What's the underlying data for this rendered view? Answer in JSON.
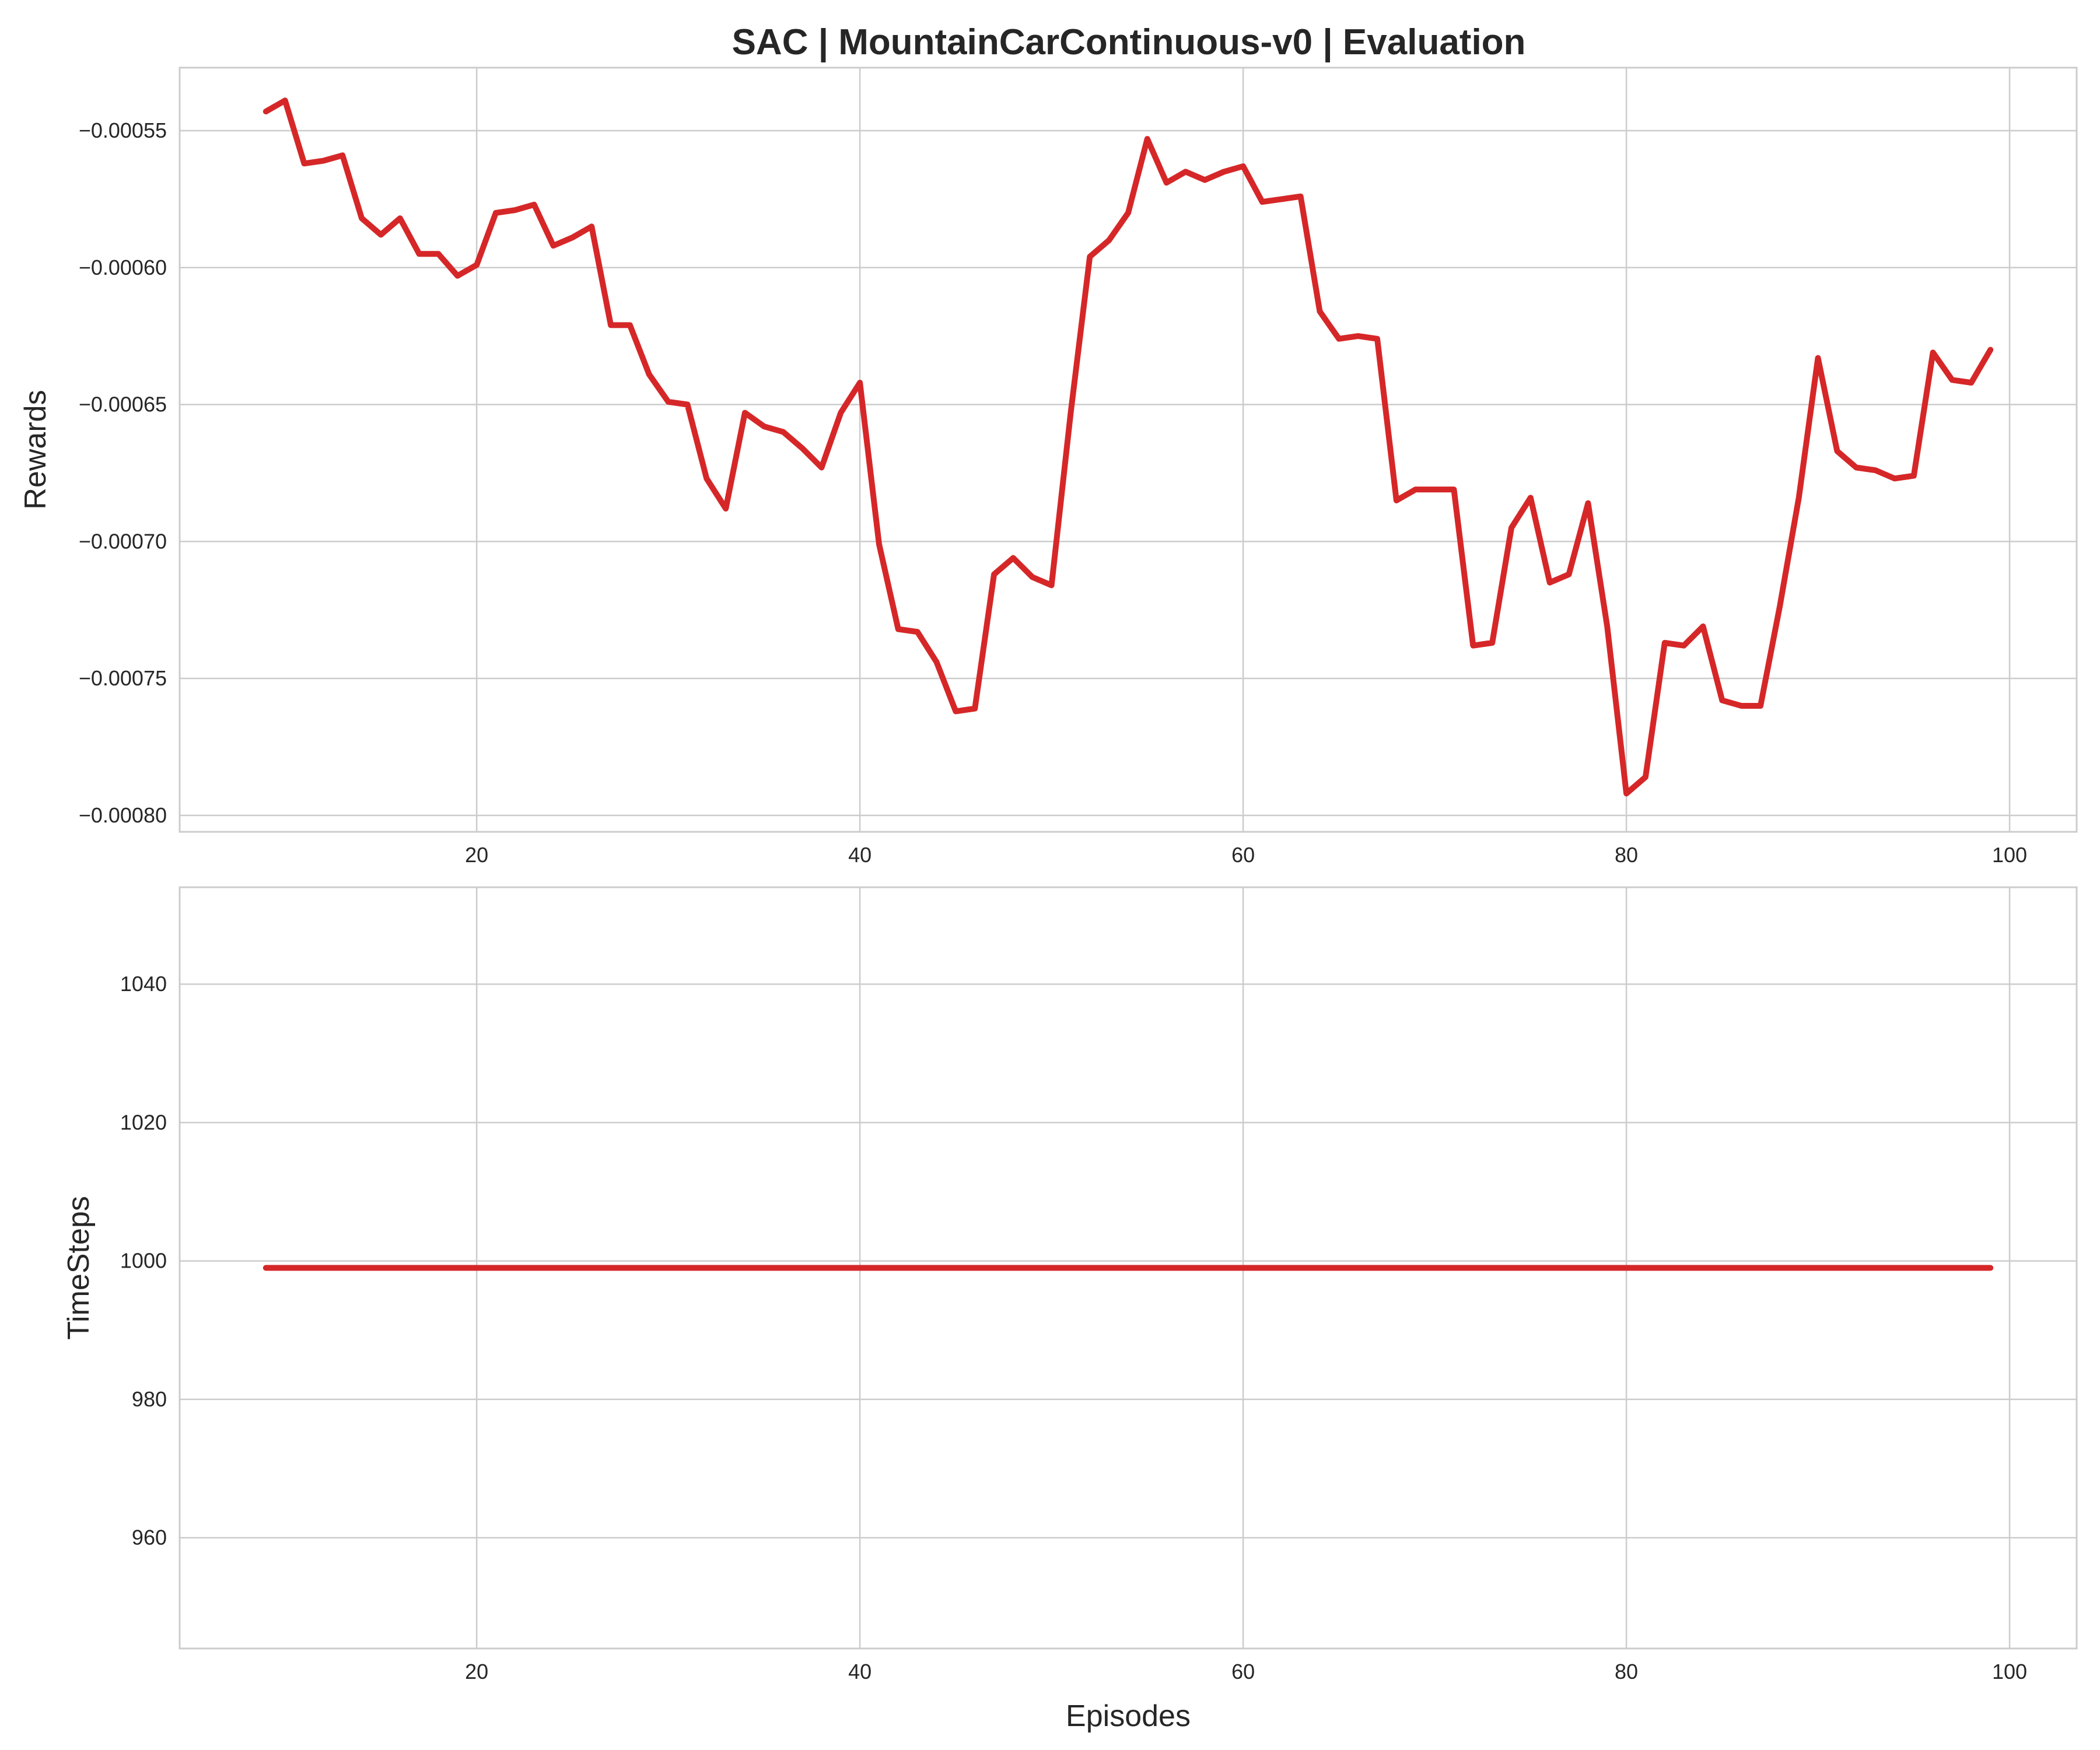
{
  "title": "SAC | MountainCarContinuous-v0 | Evaluation",
  "colors": {
    "line": "#d62728",
    "grid": "#cccccc",
    "frame": "#cccccc",
    "text": "#262626"
  },
  "chart_data": [
    {
      "type": "line",
      "title": "SAC | MountainCarContinuous-v0 | Evaluation",
      "xlabel": "",
      "ylabel": "Rewards",
      "xlim": [
        4.5,
        103.5
      ],
      "ylim": [
        -0.000806,
        -0.000527
      ],
      "xticks": [
        20,
        40,
        60,
        80,
        100
      ],
      "xtick_labels": [
        "20",
        "40",
        "60",
        "80",
        "100"
      ],
      "yticks": [
        -0.00055,
        -0.0006,
        -0.00065,
        -0.0007,
        -0.00075,
        -0.0008
      ],
      "ytick_labels": [
        "−0.00055",
        "−0.00060",
        "−0.00065",
        "−0.00070",
        "−0.00075",
        "−0.00080"
      ],
      "grid": true,
      "series": [
        {
          "x": [
            9,
            10,
            11,
            12,
            13,
            14,
            15,
            16,
            17,
            18,
            19,
            20,
            21,
            22,
            23,
            24,
            25,
            26,
            27,
            28,
            29,
            30,
            31,
            32,
            33,
            34,
            35,
            36,
            37,
            38,
            39,
            40,
            41,
            42,
            43,
            44,
            45,
            46,
            47,
            48,
            49,
            50,
            51,
            52,
            53,
            54,
            55,
            56,
            57,
            58,
            59,
            60,
            61,
            62,
            63,
            64,
            65,
            66,
            67,
            68,
            69,
            70,
            71,
            72,
            73,
            74,
            75,
            76,
            77,
            78,
            79,
            80,
            81,
            82,
            83,
            84,
            85,
            86,
            87,
            88,
            89,
            90,
            91,
            92,
            93,
            94,
            95,
            96,
            97,
            98,
            99
          ],
          "y": [
            -0.000543,
            -0.000539,
            -0.000562,
            -0.000561,
            -0.000559,
            -0.000582,
            -0.000588,
            -0.000582,
            -0.000595,
            -0.000595,
            -0.000603,
            -0.000599,
            -0.00058,
            -0.000579,
            -0.000577,
            -0.000592,
            -0.000589,
            -0.000585,
            -0.000621,
            -0.000621,
            -0.000639,
            -0.000649,
            -0.00065,
            -0.000677,
            -0.000688,
            -0.000653,
            -0.000658,
            -0.00066,
            -0.000666,
            -0.000673,
            -0.000653,
            -0.000642,
            -0.000701,
            -0.000732,
            -0.000733,
            -0.000744,
            -0.000762,
            -0.000761,
            -0.000712,
            -0.000706,
            -0.000713,
            -0.000716,
            -0.000653,
            -0.000596,
            -0.00059,
            -0.00058,
            -0.000553,
            -0.000569,
            -0.000565,
            -0.000568,
            -0.000565,
            -0.000563,
            -0.000576,
            -0.000575,
            -0.000574,
            -0.000616,
            -0.000626,
            -0.000625,
            -0.000626,
            -0.000685,
            -0.000681,
            -0.000681,
            -0.000681,
            -0.000738,
            -0.000737,
            -0.000695,
            -0.000684,
            -0.000715,
            -0.000712,
            -0.000686,
            -0.000731,
            -0.000792,
            -0.000786,
            -0.000737,
            -0.000738,
            -0.000731,
            -0.000758,
            -0.00076,
            -0.00076,
            -0.000724,
            -0.000684,
            -0.000633,
            -0.000667,
            -0.000673,
            -0.000674,
            -0.000677,
            -0.000676,
            -0.000631,
            -0.000641,
            -0.000642,
            -0.00063
          ]
        }
      ]
    },
    {
      "type": "line",
      "xlabel": "Episodes",
      "ylabel": "TimeSteps",
      "xlim": [
        4.5,
        103.5
      ],
      "ylim": [
        944,
        1054
      ],
      "xticks": [
        20,
        40,
        60,
        80,
        100
      ],
      "xtick_labels": [
        "20",
        "40",
        "60",
        "80",
        "100"
      ],
      "yticks": [
        960,
        980,
        1000,
        1020,
        1040
      ],
      "ytick_labels": [
        "960",
        "980",
        "1000",
        "1020",
        "1040"
      ],
      "grid": true,
      "series": [
        {
          "x": [
            9,
            99
          ],
          "y": [
            999,
            999
          ]
        }
      ]
    }
  ]
}
